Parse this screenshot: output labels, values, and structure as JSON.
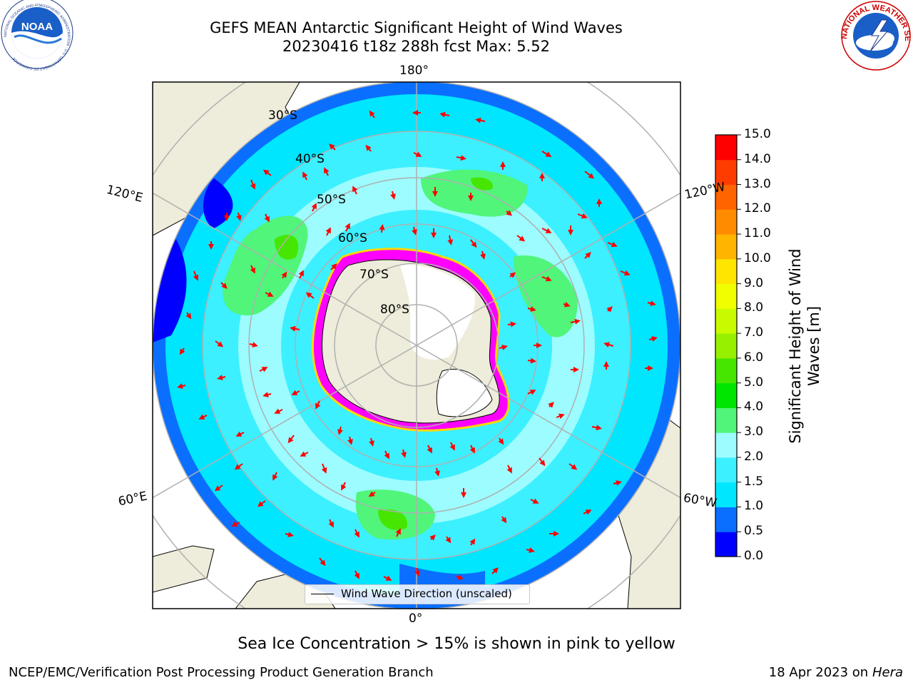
{
  "header": {
    "title_line1": "GEFS MEAN Antarctic Significant Height of Wind Waves",
    "title_line2": "20230416 t18z 288h fcst   Max: 5.52"
  },
  "logos": {
    "noaa_text": "NOAA",
    "noaa_ring_text": "NATIONAL OCEANIC AND ATMOSPHERIC ADMINISTRATION · U.S. DEPARTMENT OF COMMERCE",
    "nws_ring_text": "NATIONAL WEATHER SERVICE"
  },
  "map": {
    "projection": "south-polar-stereographic",
    "lon_labels": {
      "top": "180°",
      "bottom": "0°",
      "upper_left": "120°E",
      "upper_right": "120°W",
      "lower_left": "60°E",
      "lower_right": "60°W"
    },
    "lat_labels": [
      "30°S",
      "40°S",
      "50°S",
      "60°S",
      "70°S",
      "80°S"
    ],
    "colors": {
      "land": "#eeecda",
      "ice_outline": "#ff00ff",
      "ice_inner": "#ffd700",
      "arrow": "#ff0000",
      "grid": "#b0b0b0"
    },
    "legend_label": "Wind Wave Direction (unscaled)"
  },
  "colorbar": {
    "label_line1": "Significant Height of Wind",
    "label_line2": "Waves [m]",
    "ticks": [
      "0.0",
      "0.5",
      "1.0",
      "1.5",
      "2.0",
      "3.0",
      "4.0",
      "5.0",
      "6.0",
      "7.0",
      "8.0",
      "9.0",
      "10.0",
      "11.0",
      "12.0",
      "13.0",
      "14.0",
      "15.0"
    ],
    "colors": [
      "#0000ff",
      "#0a6fff",
      "#00e6ff",
      "#3cf0ff",
      "#9cfcff",
      "#50f57a",
      "#00e600",
      "#46e600",
      "#96f000",
      "#c8fa00",
      "#f0ff00",
      "#ffe600",
      "#ffb400",
      "#ff8c00",
      "#ff6400",
      "#ff3c00",
      "#ff0000"
    ]
  },
  "footer": {
    "note": "Sea Ice Concentration > 15% is shown in pink to yellow",
    "credit_left": "NCEP/EMC/Verification Post Processing Product Generation Branch",
    "credit_right_prefix": "18 Apr 2023 on ",
    "credit_right_machine": "Hera"
  }
}
